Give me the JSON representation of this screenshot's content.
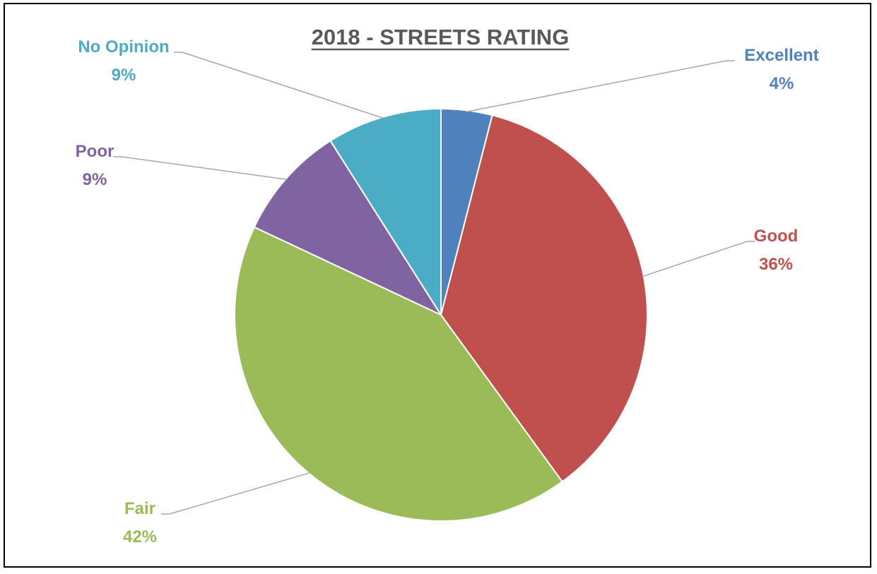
{
  "chart_data": {
    "type": "pie",
    "title": "2018 - STREETS RATING",
    "slices": [
      {
        "label": "Excellent",
        "value": 4,
        "percent_label": "4%",
        "color": "#4F81BD"
      },
      {
        "label": "Good",
        "value": 36,
        "percent_label": "36%",
        "color": "#C0504D"
      },
      {
        "label": "Fair",
        "value": 42,
        "percent_label": "42%",
        "color": "#9BBB59"
      },
      {
        "label": "Poor",
        "value": 9,
        "percent_label": "9%",
        "color": "#8064A2"
      },
      {
        "label": "No Opinion",
        "value": 9,
        "percent_label": "9%",
        "color": "#4BACC6"
      }
    ],
    "start_angle": "12 o'clock",
    "direction": "clockwise",
    "legend": "none",
    "data_labels": "outside with leader lines"
  },
  "colors": {
    "title": "#595959",
    "leader_line": "#A6A6A6",
    "frame_border": "#000000"
  }
}
